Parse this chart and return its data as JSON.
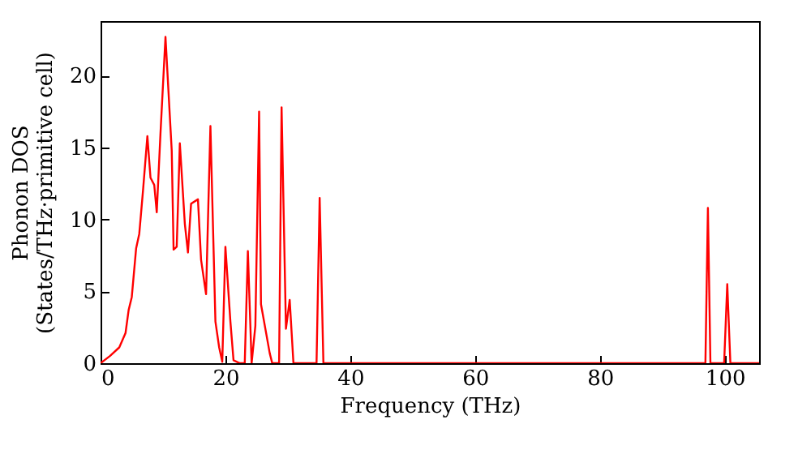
{
  "chart_data": {
    "type": "line",
    "xlabel": "Frequency (THz)",
    "ylabel": "Phonon DOS\n(States/THz·primitive cell)",
    "xlim": [
      0,
      105.5
    ],
    "ylim": [
      0,
      23.8
    ],
    "xticks": [
      0,
      20,
      40,
      60,
      80,
      100
    ],
    "yticks": [
      0,
      5,
      10,
      15,
      20
    ],
    "grid": false,
    "marker": "none",
    "line_style": "solid",
    "x": [
      0,
      1.5,
      3,
      4,
      4.5,
      5,
      5.7,
      6.2,
      6.8,
      7.5,
      8,
      8.6,
      9,
      9.6,
      10.4,
      11.4,
      11.7,
      12.2,
      12.7,
      13.5,
      14,
      14.5,
      15.6,
      16.1,
      16.9,
      17.6,
      18.4,
      19,
      19.5,
      20,
      20.8,
      21.3,
      22.3,
      23.1,
      23.6,
      24.2,
      24.8,
      25.4,
      25.7,
      27.1,
      27.5,
      28.6,
      29.0,
      29.7,
      30.3,
      30.9,
      34.6,
      35.1,
      35.7,
      96.9,
      97.3,
      97.7,
      99.9,
      100.4,
      100.9,
      105.5
    ],
    "series": [
      {
        "color": "#ff0000",
        "values": [
          0,
          0.5,
          1.1,
          2.1,
          3.7,
          4.6,
          8,
          9,
          12,
          15.8,
          12.9,
          12.4,
          10.5,
          16,
          22.7,
          14.8,
          7.9,
          8.1,
          15.3,
          9.7,
          7.7,
          11.1,
          11.4,
          7.2,
          4.8,
          16.5,
          2.9,
          1.1,
          0.1,
          8.1,
          2.9,
          0.2,
          0,
          0,
          7.8,
          0,
          2.6,
          17.5,
          4.1,
          0.7,
          0,
          0,
          17.8,
          2.4,
          4.4,
          0,
          0,
          11.5,
          0,
          0,
          10.8,
          0,
          0,
          5.5,
          0,
          0
        ]
      }
    ]
  }
}
